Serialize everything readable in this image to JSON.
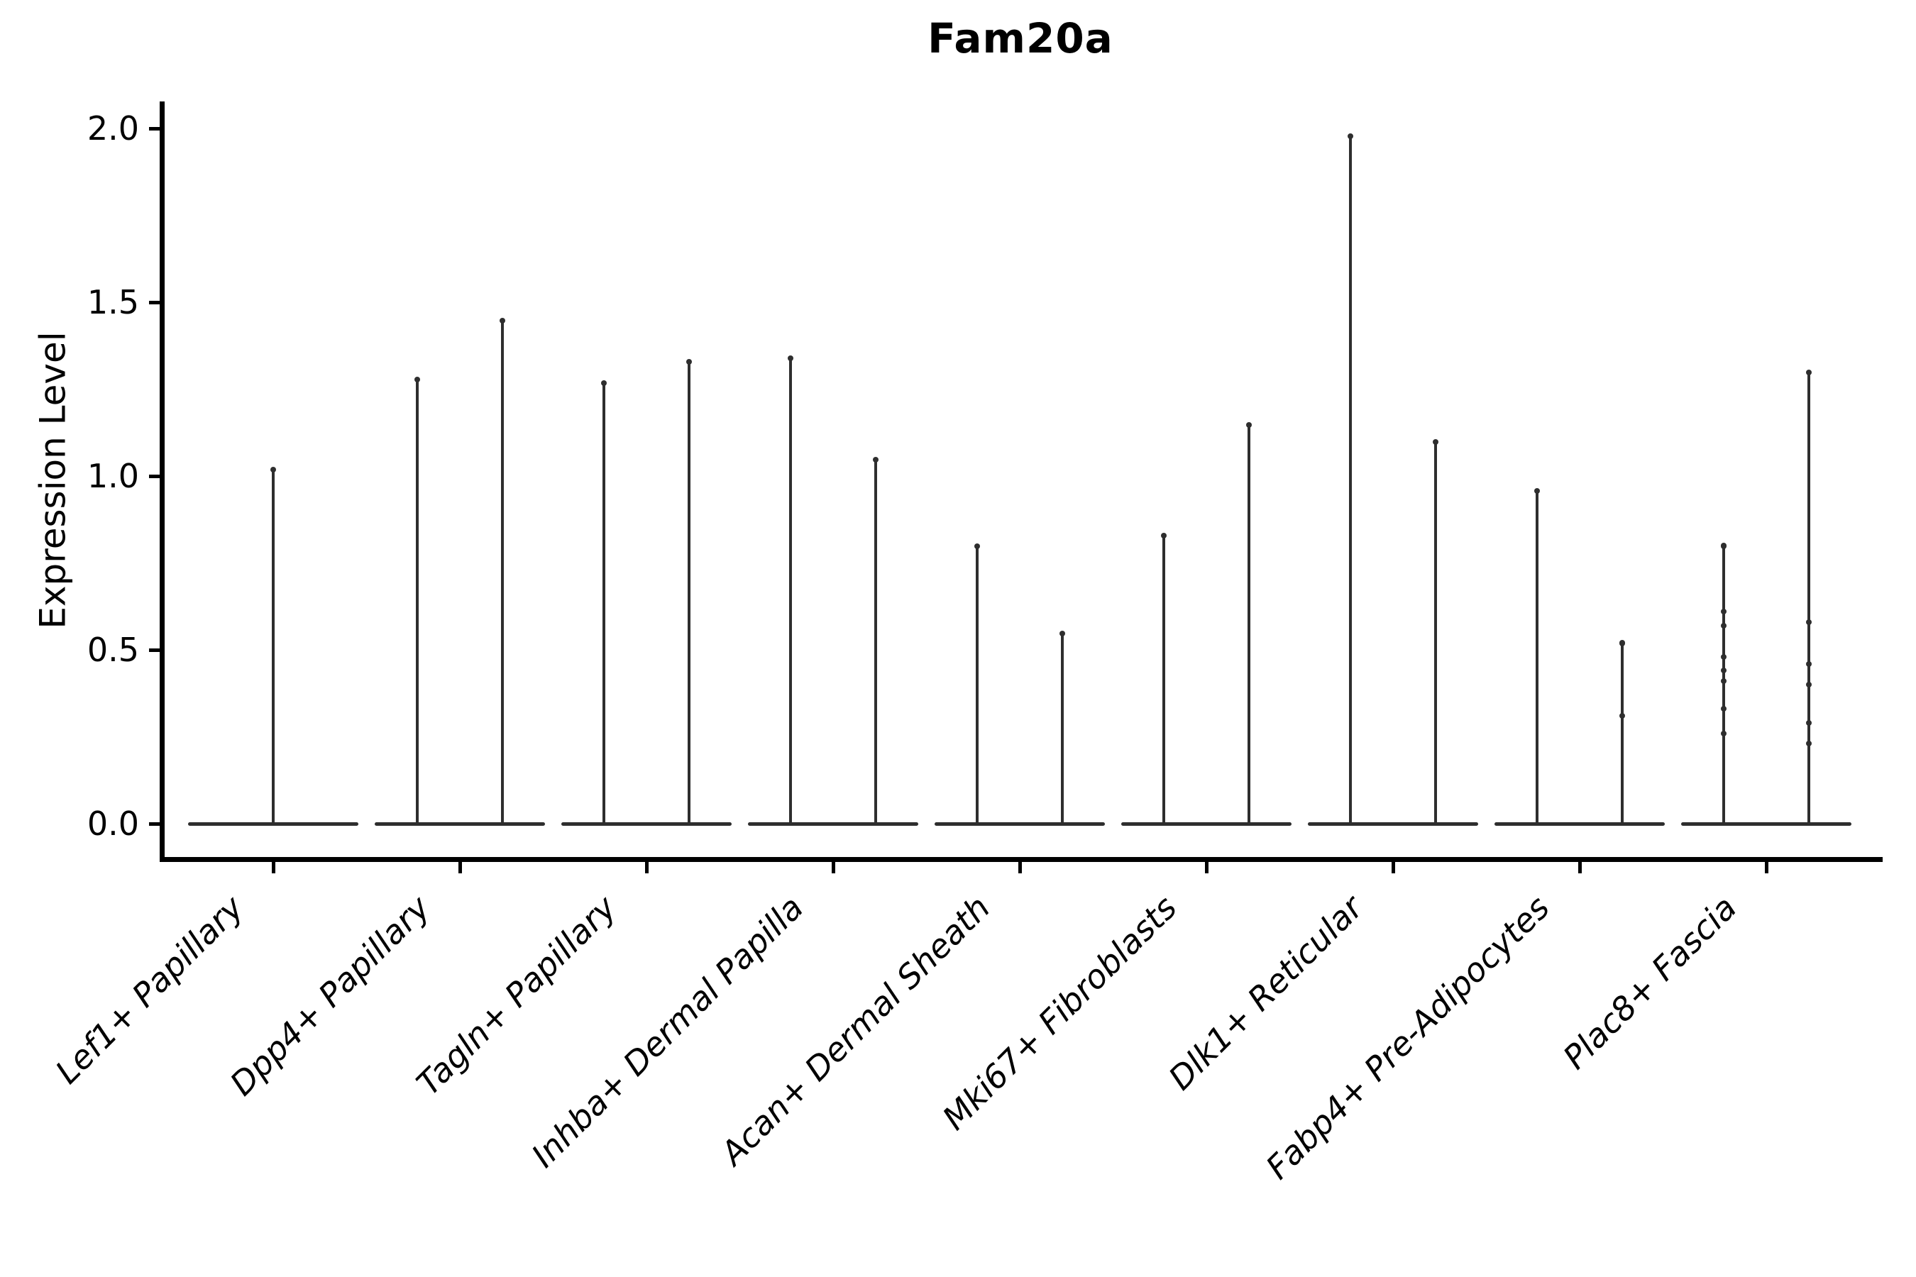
{
  "title": "Fam20a",
  "y_axis": {
    "label": "Expression Level",
    "ticks": [
      {
        "label": "0.0",
        "value": 0.0
      },
      {
        "label": "0.5",
        "value": 0.5
      },
      {
        "label": "1.0",
        "value": 1.0
      },
      {
        "label": "1.5",
        "value": 1.5
      },
      {
        "label": "2.0",
        "value": 2.0
      }
    ]
  },
  "chart_data": {
    "type": "violin",
    "title": "Fam20a",
    "xlabel": "",
    "ylabel": "Expression Level",
    "ylim": [
      -0.1,
      2.08
    ],
    "grid": false,
    "legend": "none",
    "line_color": "#2e2e2e",
    "axis_color": "#000000",
    "categories": [
      "Lef1+ Papillary",
      "Dpp4+ Papillary",
      "Tagln+ Papillary",
      "Inhba+ Dermal Papilla",
      "Acan+ Dermal Sheath",
      "Mki67+ Fibroblasts",
      "Dlk1+ Reticular",
      "Fabp4+ Pre-Adipocytes",
      "Plac8+ Fascia"
    ],
    "groups": [
      {
        "category": "Lef1+ Papillary",
        "violins": [
          {
            "max": 1.02,
            "dots": []
          }
        ]
      },
      {
        "category": "Dpp4+ Papillary",
        "violins": [
          {
            "max": 1.28,
            "dots": []
          },
          {
            "max": 1.45,
            "dots": []
          }
        ]
      },
      {
        "category": "Tagln+ Papillary",
        "violins": [
          {
            "max": 1.27,
            "dots": []
          },
          {
            "max": 1.33,
            "dots": []
          }
        ]
      },
      {
        "category": "Inhba+ Dermal Papilla",
        "violins": [
          {
            "max": 1.34,
            "dots": []
          },
          {
            "max": 1.05,
            "dots": []
          }
        ]
      },
      {
        "category": "Acan+ Dermal Sheath",
        "violins": [
          {
            "max": 0.8,
            "dots": []
          },
          {
            "max": 0.55,
            "dots": []
          }
        ]
      },
      {
        "category": "Mki67+ Fibroblasts",
        "violins": [
          {
            "max": 0.83,
            "dots": []
          },
          {
            "max": 1.15,
            "dots": []
          }
        ]
      },
      {
        "category": "Dlk1+ Reticular",
        "violins": [
          {
            "max": 1.98,
            "dots": []
          },
          {
            "max": 1.1,
            "dots": []
          }
        ]
      },
      {
        "category": "Fabp4+ Pre-Adipocytes",
        "violins": [
          {
            "max": 0.96,
            "dots": []
          },
          {
            "max": 0.52,
            "dots": [
              0.52,
              0.31
            ]
          }
        ]
      },
      {
        "category": "Plac8+ Fascia",
        "violins": [
          {
            "max": 0.8,
            "dots": [
              0.8,
              0.61,
              0.57,
              0.48,
              0.44,
              0.41,
              0.33,
              0.26
            ]
          },
          {
            "max": 1.3,
            "dots": [
              0.58,
              0.46,
              0.4,
              0.29,
              0.23
            ]
          }
        ]
      }
    ],
    "note": "All violins are density spikes: wide flat base at expression 0 with a thin vertical tail up to the group maximum. Single violin for Lef1+ Papillary; all other categories show two side-by-side violins."
  }
}
